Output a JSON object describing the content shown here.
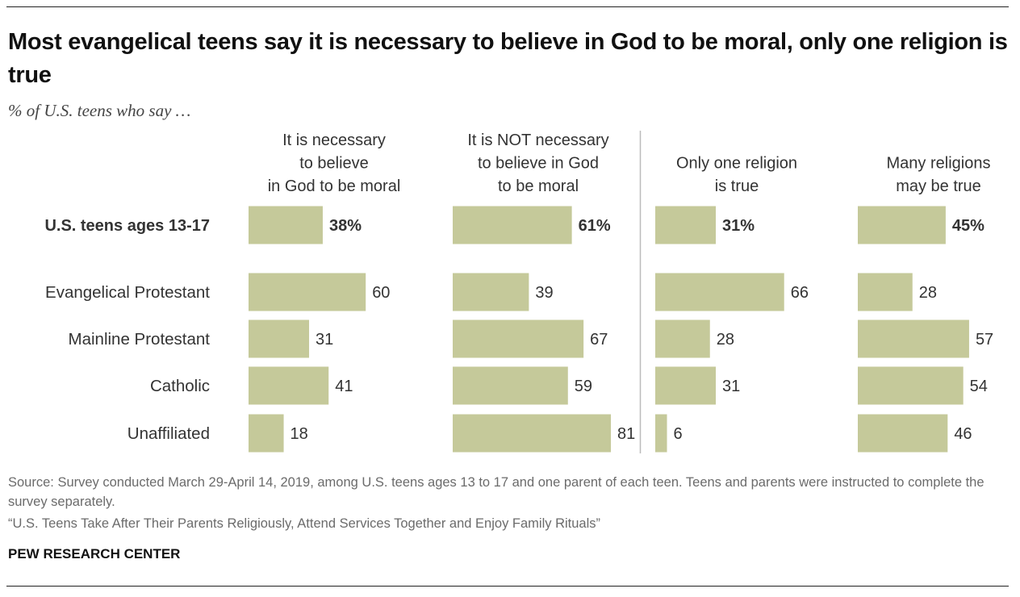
{
  "title": "Most evangelical teens say it is necessary to believe in God to be moral, only one religion is true",
  "subtitle": "% of U.S. teens who say …",
  "colors": {
    "bar": "#c5c99a",
    "text": "#333333",
    "divider": "#bbbbbb"
  },
  "chart_data": {
    "type": "bar",
    "orientation": "horizontal",
    "title": "Most evangelical teens say it is necessary to believe in God to be moral, only one religion is true",
    "subtitle": "% of U.S. teens who say …",
    "unit": "%",
    "categories": [
      "U.S. teens ages 13-17",
      "Evangelical Protestant",
      "Mainline Protestant",
      "Catholic",
      "Unaffiliated"
    ],
    "series": [
      {
        "name": "It is necessary to believe in God to be moral",
        "header": [
          "It is necessary",
          "to believe",
          "in God to be moral"
        ],
        "values": [
          38,
          60,
          31,
          41,
          18
        ]
      },
      {
        "name": "It is NOT necessary to believe in God to be moral",
        "header": [
          "It is NOT necessary",
          "to believe in God",
          "to be moral"
        ],
        "values": [
          61,
          39,
          67,
          59,
          81
        ]
      },
      {
        "name": "Only one religion is true",
        "header": [
          "Only one religion",
          "is true"
        ],
        "values": [
          31,
          66,
          28,
          31,
          6
        ]
      },
      {
        "name": "Many religions may be true",
        "header": [
          "Many religions",
          "may be true"
        ],
        "values": [
          45,
          28,
          57,
          54,
          46
        ]
      }
    ],
    "xlim": [
      0,
      100
    ],
    "grid": false,
    "legend": "none"
  },
  "footer": {
    "source": "Source: Survey conducted March 29-April 14, 2019, among U.S. teens ages 13 to 17 and one parent of each teen. Teens and parents were instructed to complete the survey separately.",
    "note": "“U.S. Teens Take After Their Parents Religiously, Attend Services Together and Enjoy Family Rituals”",
    "org": "PEW RESEARCH CENTER"
  }
}
